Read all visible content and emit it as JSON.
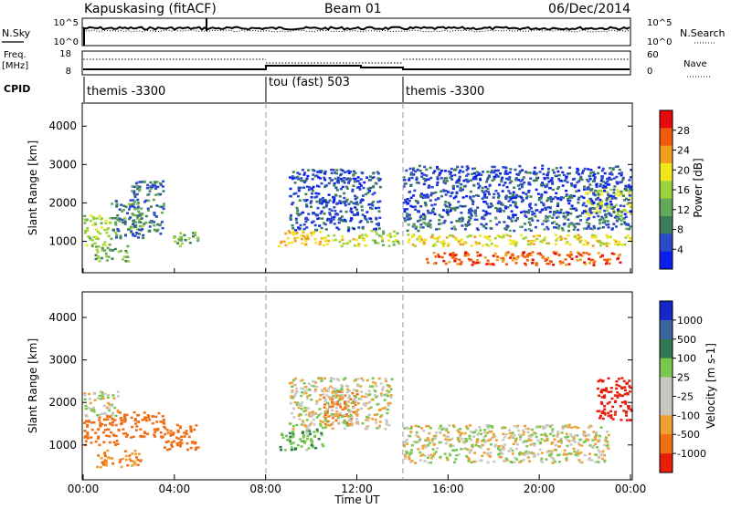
{
  "header": {
    "station": "Kapuskasing (fitACF)",
    "beam": "Beam 01",
    "date": "06/Dec/2014"
  },
  "sky_panel": {
    "left_label": "N.Sky",
    "left_ticks": [
      "10^5",
      "10^0"
    ],
    "right_ticks": [
      "10^5",
      "10^0"
    ],
    "right_label": "N.Search"
  },
  "freq_panel": {
    "left_label_1": "Freq.",
    "left_label_2": "[MHz]",
    "left_ticks": [
      "18",
      "8"
    ],
    "right_ticks": [
      "60",
      "0"
    ],
    "right_label": "Nave"
  },
  "cpid": {
    "label": "CPID",
    "segments": [
      {
        "name": "themis -3300",
        "start": 0,
        "end": 8
      },
      {
        "name": "tou (fast) 503",
        "start": 8,
        "end": 14
      },
      {
        "name": "themis -3300",
        "start": 14,
        "end": 24
      }
    ]
  },
  "x_axis": {
    "label": "Time UT",
    "ticks": [
      "00:00",
      "04:00",
      "08:00",
      "12:00",
      "16:00",
      "20:00",
      "00:00"
    ]
  },
  "power_panel": {
    "ylabel": "Slant Range [km]",
    "colorbar_label": "Power [dB]",
    "colorbar_ticks": [
      "28",
      "24",
      "20",
      "16",
      "12",
      "8",
      "4"
    ],
    "colors": [
      "#0a1ef0",
      "#2b49c8",
      "#3c7e5a",
      "#64a85a",
      "#9cd23c",
      "#f0e61e",
      "#f0a01e",
      "#f05a0a",
      "#e60a0a"
    ]
  },
  "velocity_panel": {
    "ylabel": "Slant Range [km]",
    "colorbar_label": "Velocity [m s-1]",
    "colorbar_ticks": [
      "1000",
      "500",
      "100",
      "25",
      "-25",
      "-100",
      "-500",
      "-1000"
    ],
    "colors": [
      "#1428c8",
      "#3c64a0",
      "#327850",
      "#78c850",
      "#c8c8c0",
      "#c8c8c0",
      "#f0a032",
      "#f06e14",
      "#e61e0a"
    ]
  },
  "chart_data": [
    {
      "type": "heatmap",
      "title": "Power",
      "xlabel": "Time UT",
      "ylabel": "Slant Range [km]",
      "xlim": [
        0,
        24
      ],
      "ylim": [
        180,
        4600
      ],
      "yticks": [
        1000,
        2000,
        3000,
        4000
      ],
      "colorbar": {
        "label": "Power [dB]",
        "range": [
          0,
          30
        ],
        "ticks": [
          4,
          8,
          12,
          16,
          20,
          24,
          28
        ]
      },
      "regions": [
        {
          "t": [
            0.0,
            1.2
          ],
          "r": [
            900,
            1700
          ],
          "value": 14
        },
        {
          "t": [
            1.2,
            2.6
          ],
          "r": [
            1100,
            2100
          ],
          "value": 10
        },
        {
          "t": [
            2.0,
            3.5
          ],
          "r": [
            1200,
            2600
          ],
          "value": 8
        },
        {
          "t": [
            0.5,
            2.0
          ],
          "r": [
            500,
            900
          ],
          "value": 12
        },
        {
          "t": [
            3.8,
            5.0
          ],
          "r": [
            900,
            1300
          ],
          "value": 12
        },
        {
          "t": [
            8.5,
            10.5
          ],
          "r": [
            900,
            1300
          ],
          "value": 20
        },
        {
          "t": [
            10.5,
            12.5
          ],
          "r": [
            900,
            1200
          ],
          "value": 17
        },
        {
          "t": [
            12.5,
            13.8
          ],
          "r": [
            900,
            1300
          ],
          "value": 14
        },
        {
          "t": [
            9.0,
            13.0
          ],
          "r": [
            1300,
            2900
          ],
          "value": 6
        },
        {
          "t": [
            14.0,
            24.0
          ],
          "r": [
            900,
            1200
          ],
          "value": 18
        },
        {
          "t": [
            14.0,
            24.0
          ],
          "r": [
            1300,
            1700
          ],
          "value": 8
        },
        {
          "t": [
            15.0,
            23.5
          ],
          "r": [
            400,
            750
          ],
          "value": 26
        },
        {
          "t": [
            22.0,
            24.0
          ],
          "r": [
            1700,
            2400
          ],
          "value": 16
        },
        {
          "t": [
            14.0,
            24.0
          ],
          "r": [
            1700,
            3000
          ],
          "value": 6
        }
      ]
    },
    {
      "type": "heatmap",
      "title": "Velocity",
      "xlabel": "Time UT",
      "ylabel": "Slant Range [km]",
      "xlim": [
        0,
        24
      ],
      "ylim": [
        180,
        4600
      ],
      "yticks": [
        1000,
        2000,
        3000,
        4000
      ],
      "colorbar": {
        "label": "Velocity [m s-1]",
        "range": [
          -1000,
          1000
        ],
        "ticks": [
          1000,
          500,
          100,
          25,
          -25,
          -100,
          -500,
          -1000
        ]
      },
      "regions": [
        {
          "t": [
            0.0,
            1.5
          ],
          "r": [
            1700,
            2300
          ],
          "value": 0
        },
        {
          "t": [
            0.0,
            1.5
          ],
          "r": [
            1000,
            1700
          ],
          "value": -200
        },
        {
          "t": [
            1.5,
            3.5
          ],
          "r": [
            1200,
            1800
          ],
          "value": -300
        },
        {
          "t": [
            0.5,
            2.5
          ],
          "r": [
            500,
            900
          ],
          "value": -100
        },
        {
          "t": [
            3.5,
            5.0
          ],
          "r": [
            900,
            1500
          ],
          "value": -400
        },
        {
          "t": [
            8.5,
            10.5
          ],
          "r": [
            900,
            1400
          ],
          "value": 80
        },
        {
          "t": [
            10.5,
            12.0
          ],
          "r": [
            1500,
            2300
          ],
          "value": -400
        },
        {
          "t": [
            9.0,
            13.5
          ],
          "r": [
            1400,
            2600
          ],
          "value": 0
        },
        {
          "t": [
            14.0,
            23.0
          ],
          "r": [
            600,
            1500
          ],
          "value": 0
        },
        {
          "t": [
            22.5,
            24.0
          ],
          "r": [
            1600,
            2600
          ],
          "value": -700
        }
      ]
    }
  ]
}
